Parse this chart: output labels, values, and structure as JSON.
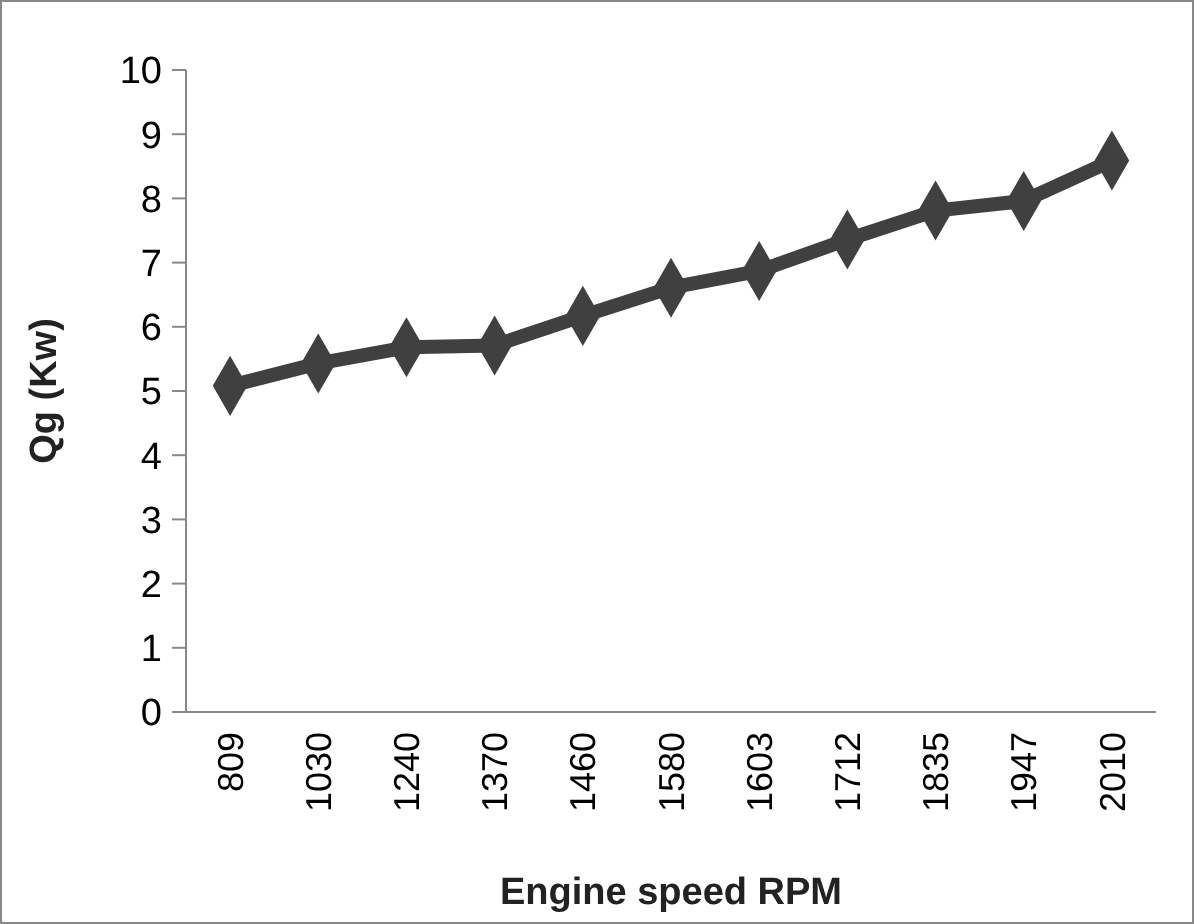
{
  "chart_data": {
    "type": "line",
    "xlabel": "Engine speed RPM",
    "ylabel": "Qg (Kw)",
    "categories": [
      "809",
      "1030",
      "1240",
      "1370",
      "1460",
      "1580",
      "1603",
      "1712",
      "1835",
      "1947",
      "2010"
    ],
    "series": [
      {
        "color": "#404040",
        "values": [
          5.08,
          5.43,
          5.68,
          5.71,
          6.17,
          6.61,
          6.87,
          7.36,
          7.81,
          7.96,
          8.59
        ]
      }
    ],
    "ylim": [
      0,
      10
    ],
    "yticks": [
      0,
      1,
      2,
      3,
      4,
      5,
      6,
      7,
      8,
      9,
      10
    ],
    "grid": false,
    "marker": "diamond",
    "line_style": "solid"
  }
}
